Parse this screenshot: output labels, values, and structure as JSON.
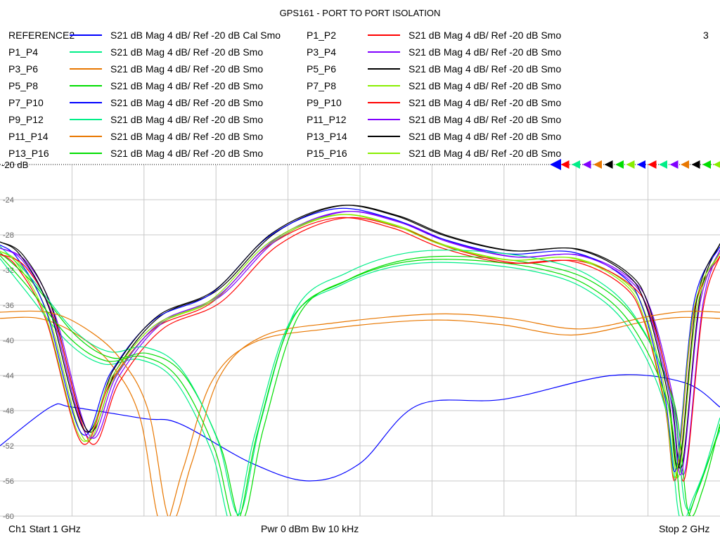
{
  "chart_data": {
    "type": "line",
    "title": "GPS161 - PORT TO PORT ISOLATION",
    "xlim": [
      1,
      2
    ],
    "ylim": [
      -60,
      -20
    ],
    "yticks": [
      -24,
      -28,
      -32,
      -36,
      -40,
      -44,
      -48,
      -52,
      -56,
      -60
    ],
    "ytick_labels": [
      "-24",
      "-28",
      "-32",
      "-36",
      "-40",
      "-44",
      "-48",
      "-52",
      "-56",
      "-60"
    ],
    "ref_label": "-20 dB",
    "grid": true,
    "legend_placement": "top",
    "series": [
      {
        "name": "REFERENCE2",
        "desc": "S21  dB Mag  4 dB/ Ref -20 dB  Cal Smo",
        "color": "#0000ff",
        "group": "ref",
        "points": [
          [
            1.0,
            -52.0
          ],
          [
            1.07,
            -47.6
          ],
          [
            1.1,
            -47.6
          ],
          [
            1.2,
            -48.9
          ],
          [
            1.25,
            -49.5
          ],
          [
            1.35,
            -54.0
          ],
          [
            1.43,
            -56.0
          ],
          [
            1.5,
            -54.0
          ],
          [
            1.58,
            -47.4
          ],
          [
            1.7,
            -46.7
          ],
          [
            1.85,
            -44.0
          ],
          [
            1.95,
            -44.8
          ],
          [
            2.0,
            -47.6
          ]
        ]
      },
      {
        "name": "P1_P2",
        "desc": "S21  dB Mag  4 dB/ Ref -20 dB  Smo",
        "color": "#ff0000",
        "group": "A"
      },
      {
        "name": "P1_P4",
        "desc": "S21  dB Mag  4 dB/ Ref -20 dB  Smo",
        "color": "#00ee88",
        "group": "B"
      },
      {
        "name": "P3_P4",
        "desc": "S21  dB Mag  4 dB/ Ref -20 dB  Smo",
        "color": "#8000ff",
        "group": "A"
      },
      {
        "name": "P3_P6",
        "desc": "S21  dB Mag  4 dB/ Ref -20 dB  Smo",
        "color": "#e87700",
        "group": "C"
      },
      {
        "name": "P5_P6",
        "desc": "S21  dB Mag  4 dB/ Ref -20 dB  Smo",
        "color": "#000000",
        "group": "A"
      },
      {
        "name": "P5_P8",
        "desc": "S21  dB Mag  4 dB/ Ref -20 dB  Smo",
        "color": "#00dd00",
        "group": "B"
      },
      {
        "name": "P7_P8",
        "desc": "S21  dB Mag  4 dB/ Ref -20 dB  Smo",
        "color": "#88ee00",
        "group": "A"
      },
      {
        "name": "P7_P10",
        "desc": "S21  dB Mag  4 dB/ Ref -20 dB  Smo",
        "color": "#0000ff",
        "group": "A"
      },
      {
        "name": "P9_P10",
        "desc": "S21  dB Mag  4 dB/ Ref -20 dB  Smo",
        "color": "#ff0000",
        "group": "A"
      },
      {
        "name": "P9_P12",
        "desc": "S21  dB Mag  4 dB/ Ref -20 dB  Smo",
        "color": "#00ee88",
        "group": "B"
      },
      {
        "name": "P11_P12",
        "desc": "S21  dB Mag  4 dB/ Ref -20 dB  Smo",
        "color": "#8000ff",
        "group": "A"
      },
      {
        "name": "P11_P14",
        "desc": "S21  dB Mag  4 dB/ Ref -20 dB  Smo",
        "color": "#e87700",
        "group": "C"
      },
      {
        "name": "P13_P14",
        "desc": "S21  dB Mag  4 dB/ Ref -20 dB  Smo",
        "color": "#000000",
        "group": "A"
      },
      {
        "name": "P13_P16",
        "desc": "S21  dB Mag  4 dB/ Ref -20 dB  Smo",
        "color": "#00dd00",
        "group": "B"
      },
      {
        "name": "P15_P16",
        "desc": "S21  dB Mag  4 dB/ Ref -20 dB  Smo",
        "color": "#88ee00",
        "group": "A"
      }
    ],
    "group_shapes": {
      "A": [
        [
          1.0,
          -29.5
        ],
        [
          1.03,
          -31.0
        ],
        [
          1.07,
          -37.0
        ],
        [
          1.12,
          -51.0
        ],
        [
          1.16,
          -44.0
        ],
        [
          1.22,
          -38.0
        ],
        [
          1.3,
          -35.0
        ],
        [
          1.38,
          -28.5
        ],
        [
          1.47,
          -25.4
        ],
        [
          1.55,
          -26.5
        ],
        [
          1.62,
          -28.8
        ],
        [
          1.71,
          -30.5
        ],
        [
          1.8,
          -30.3
        ],
        [
          1.87,
          -33.0
        ],
        [
          1.9,
          -37.0
        ],
        [
          1.93,
          -47.0
        ],
        [
          1.945,
          -55.0
        ],
        [
          1.97,
          -36.0
        ],
        [
          2.0,
          -29.7
        ]
      ],
      "B": [
        [
          1.0,
          -30.0
        ],
        [
          1.04,
          -33.5
        ],
        [
          1.1,
          -39.5
        ],
        [
          1.15,
          -42.0
        ],
        [
          1.2,
          -41.5
        ],
        [
          1.25,
          -44.0
        ],
        [
          1.3,
          -52.0
        ],
        [
          1.33,
          -60.5
        ],
        [
          1.36,
          -50.0
        ],
        [
          1.41,
          -37.0
        ],
        [
          1.48,
          -33.0
        ],
        [
          1.56,
          -30.8
        ],
        [
          1.65,
          -30.5
        ],
        [
          1.75,
          -31.5
        ],
        [
          1.82,
          -33.5
        ],
        [
          1.88,
          -38.0
        ],
        [
          1.93,
          -47.0
        ],
        [
          1.95,
          -59.5
        ],
        [
          1.97,
          -57.0
        ],
        [
          2.0,
          -49.5
        ]
      ],
      "C": [
        [
          1.0,
          -36.8
        ],
        [
          1.06,
          -36.8
        ],
        [
          1.11,
          -38.5
        ],
        [
          1.16,
          -42.0
        ],
        [
          1.2,
          -48.0
        ],
        [
          1.23,
          -60.5
        ],
        [
          1.26,
          -54.0
        ],
        [
          1.3,
          -44.0
        ],
        [
          1.36,
          -39.5
        ],
        [
          1.46,
          -38.0
        ],
        [
          1.6,
          -37.0
        ],
        [
          1.7,
          -37.5
        ],
        [
          1.8,
          -38.7
        ],
        [
          1.9,
          -37.2
        ],
        [
          1.95,
          -36.7
        ],
        [
          2.0,
          -36.8
        ]
      ]
    }
  },
  "header": {
    "corner_number": "3"
  },
  "footer": {
    "left": "Ch1  Start  1 GHz",
    "mid": "Pwr  0 dBm  Bw  10 kHz",
    "right": "Stop  2 GHz"
  },
  "marker_colors": [
    "#0000ff",
    "#ff0000",
    "#00ee88",
    "#8000ff",
    "#e87700",
    "#000000",
    "#00dd00",
    "#88ee00",
    "#0000ff",
    "#ff0000",
    "#00ee88",
    "#8000ff",
    "#e87700",
    "#000000",
    "#00dd00",
    "#88ee00"
  ]
}
